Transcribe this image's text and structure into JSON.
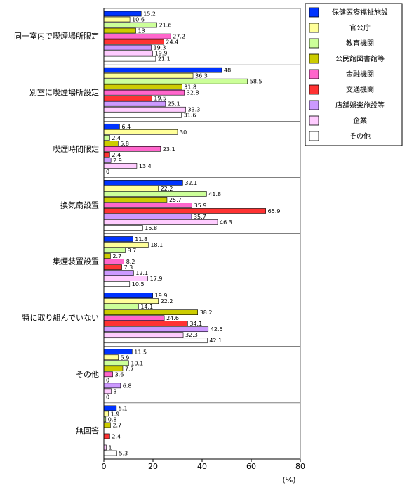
{
  "chart_data": {
    "type": "bar",
    "orientation": "horizontal",
    "x_label": "(%)",
    "categories": [
      "同一室内で喫煙場所限定",
      "別室に喫煙場所設定",
      "喫煙時間限定",
      "換気扇設置",
      "集煙装置設置",
      "特に取り組んでいない",
      "その他",
      "無回答"
    ],
    "series": [
      {
        "name": "保健医療福祉施設",
        "color": "#0033ff",
        "values": [
          15.2,
          48,
          6.4,
          32.1,
          11.8,
          19.9,
          11.5,
          5.1
        ]
      },
      {
        "name": "官公庁",
        "color": "#ffff99",
        "values": [
          10.6,
          36.3,
          30,
          22.2,
          18.1,
          22.2,
          5.9,
          1.9
        ]
      },
      {
        "name": "教育機関",
        "color": "#ccff99",
        "values": [
          21.6,
          58.5,
          2.4,
          41.8,
          8.7,
          14.1,
          10.1,
          0.8
        ]
      },
      {
        "name": "公民館図書館等",
        "color": "#cccc00",
        "values": [
          13,
          31.8,
          5.8,
          25.7,
          2.7,
          38.2,
          7.7,
          2.7
        ]
      },
      {
        "name": "金融機関",
        "color": "#ff66cc",
        "values": [
          27.2,
          32.8,
          23.1,
          35.9,
          8.2,
          24.6,
          3.6,
          null
        ]
      },
      {
        "name": "交通機関",
        "color": "#ff3333",
        "values": [
          24.4,
          19.5,
          2.4,
          65.9,
          7.3,
          34.1,
          0,
          2.4
        ]
      },
      {
        "name": "店舗娯楽施設等",
        "color": "#cc99ff",
        "values": [
          19.3,
          25.1,
          2.9,
          35.7,
          12.1,
          42.5,
          6.8,
          null
        ]
      },
      {
        "name": "企業",
        "color": "#ffccff",
        "values": [
          19.9,
          33.3,
          13.4,
          46.3,
          17.9,
          32.3,
          3,
          1
        ]
      },
      {
        "name": "その他",
        "color": "#ffffff",
        "values": [
          21.1,
          31.6,
          0,
          15.8,
          10.5,
          42.1,
          0,
          5.3
        ]
      }
    ],
    "xlim": [
      0,
      80
    ],
    "xticks": [
      0,
      20,
      40,
      60,
      80
    ]
  }
}
